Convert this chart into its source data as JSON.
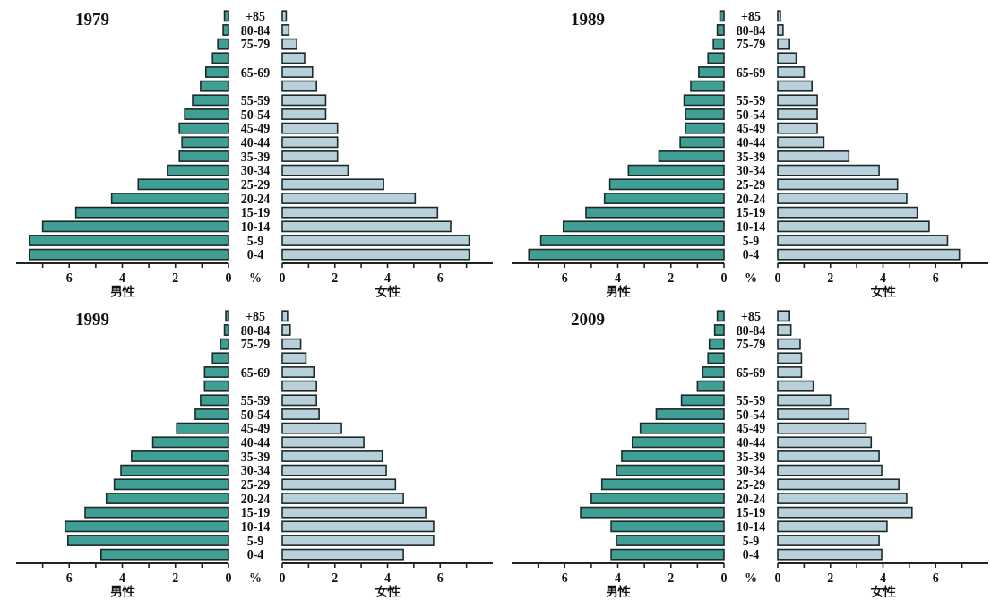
{
  "chart_data": [
    {
      "type": "bar",
      "orientation": "horizontal",
      "title": "1979",
      "xlabel": "男性",
      "annotations": [
        "%"
      ],
      "tick_labels": "x",
      "categories": [
        "+85",
        "80-84",
        "75-79",
        null,
        "65-69",
        null,
        "55-59",
        "50-54",
        "45-49",
        "40-44",
        "35-39",
        "30-34",
        "25-29",
        "20-24",
        "15-19",
        "10-14",
        "5-9",
        "0-4"
      ],
      "xlim": [
        8,
        0
      ],
      "xticks": [
        {
          "value": 7,
          "label": null
        },
        6,
        {
          "value": 5,
          "label": null
        },
        4,
        {
          "value": 3,
          "label": null
        },
        2,
        {
          "value": 1,
          "label": null
        },
        0
      ],
      "series": [
        {
          "color": "#3f9f95",
          "values": [
            0.15,
            0.2,
            0.4,
            0.6,
            0.85,
            1.05,
            1.35,
            1.65,
            1.85,
            1.75,
            1.85,
            2.3,
            3.4,
            4.4,
            5.75,
            7.0,
            7.5,
            7.5
          ]
        }
      ]
    },
    {
      "type": "bar",
      "orientation": "horizontal",
      "xlabel": "女性",
      "categories": [
        "+85",
        "80-84",
        "75-79",
        null,
        "65-69",
        null,
        "55-59",
        "50-54",
        "45-49",
        "40-44",
        "35-39",
        "30-34",
        "25-29",
        "20-24",
        "15-19",
        "10-14",
        "5-9",
        "0-4"
      ],
      "xlim": [
        0,
        8
      ],
      "xticks": [
        0,
        {
          "value": 1,
          "label": null
        },
        2,
        {
          "value": 3,
          "label": null
        },
        4,
        {
          "value": 5,
          "label": null
        },
        6,
        {
          "value": 7,
          "label": null
        }
      ],
      "series": [
        {
          "color": "#b8d0dc",
          "values": [
            0.15,
            0.25,
            0.55,
            0.85,
            1.15,
            1.3,
            1.65,
            1.65,
            2.1,
            2.1,
            2.1,
            2.5,
            3.85,
            5.05,
            5.9,
            6.4,
            7.1,
            7.1
          ]
        }
      ]
    },
    {
      "type": "bar",
      "orientation": "horizontal",
      "title": "1989",
      "xlabel": "男性",
      "annotations": [
        "%"
      ],
      "tick_labels": "x",
      "categories": [
        "+85",
        "80-84",
        "75-79",
        null,
        "65-69",
        null,
        "55-59",
        "50-54",
        "45-49",
        "40-44",
        "35-39",
        "30-34",
        "25-29",
        "20-24",
        "15-19",
        "10-14",
        "5-9",
        "0-4"
      ],
      "xlim": [
        8,
        0
      ],
      "xticks": [
        {
          "value": 7,
          "label": null
        },
        6,
        {
          "value": 5,
          "label": null
        },
        4,
        {
          "value": 3,
          "label": null
        },
        2,
        {
          "value": 1,
          "label": null
        },
        0
      ],
      "series": [
        {
          "color": "#3f9f95",
          "values": [
            0.15,
            0.25,
            0.4,
            0.6,
            0.95,
            1.25,
            1.5,
            1.45,
            1.45,
            1.65,
            2.45,
            3.6,
            4.3,
            4.5,
            5.2,
            6.05,
            6.9,
            7.35
          ]
        }
      ]
    },
    {
      "type": "bar",
      "orientation": "horizontal",
      "xlabel": "女性",
      "categories": [
        "+85",
        "80-84",
        "75-79",
        null,
        "65-69",
        null,
        "55-59",
        "50-54",
        "45-49",
        "40-44",
        "35-39",
        "30-34",
        "25-29",
        "20-24",
        "15-19",
        "10-14",
        "5-9",
        "0-4"
      ],
      "xlim": [
        0,
        8
      ],
      "xticks": [
        0,
        {
          "value": 1,
          "label": null
        },
        2,
        {
          "value": 3,
          "label": null
        },
        4,
        {
          "value": 5,
          "label": null
        },
        6,
        {
          "value": 7,
          "label": null
        }
      ],
      "series": [
        {
          "color": "#b8d0dc",
          "values": [
            0.1,
            0.2,
            0.45,
            0.7,
            1.0,
            1.3,
            1.5,
            1.5,
            1.5,
            1.75,
            2.7,
            3.85,
            4.55,
            4.9,
            5.3,
            5.75,
            6.45,
            6.9
          ]
        }
      ]
    },
    {
      "type": "bar",
      "orientation": "horizontal",
      "title": "1999",
      "xlabel": "男性",
      "annotations": [
        "%"
      ],
      "tick_labels": "x",
      "categories": [
        "+85",
        "80-84",
        "75-79",
        null,
        "65-69",
        null,
        "55-59",
        "50-54",
        "45-49",
        "40-44",
        "35-39",
        "30-34",
        "25-29",
        "20-24",
        "15-19",
        "10-14",
        "5-9",
        "0-4"
      ],
      "xlim": [
        8,
        0
      ],
      "xticks": [
        {
          "value": 7,
          "label": null
        },
        6,
        {
          "value": 5,
          "label": null
        },
        4,
        {
          "value": 3,
          "label": null
        },
        2,
        {
          "value": 1,
          "label": null
        },
        0
      ],
      "series": [
        {
          "color": "#3f9f95",
          "values": [
            0.1,
            0.15,
            0.3,
            0.6,
            0.9,
            0.9,
            1.05,
            1.25,
            1.95,
            2.85,
            3.65,
            4.05,
            4.3,
            4.6,
            5.4,
            6.15,
            6.05,
            4.8
          ]
        }
      ]
    },
    {
      "type": "bar",
      "orientation": "horizontal",
      "xlabel": "女性",
      "categories": [
        "+85",
        "80-84",
        "75-79",
        null,
        "65-69",
        null,
        "55-59",
        "50-54",
        "45-49",
        "40-44",
        "35-39",
        "30-34",
        "25-29",
        "20-24",
        "15-19",
        "10-14",
        "5-9",
        "0-4"
      ],
      "xlim": [
        0,
        8
      ],
      "xticks": [
        0,
        {
          "value": 1,
          "label": null
        },
        2,
        {
          "value": 3,
          "label": null
        },
        4,
        {
          "value": 5,
          "label": null
        },
        6,
        {
          "value": 7,
          "label": null
        }
      ],
      "series": [
        {
          "color": "#b8d0dc",
          "values": [
            0.2,
            0.3,
            0.7,
            0.9,
            1.2,
            1.3,
            1.3,
            1.4,
            2.25,
            3.1,
            3.8,
            3.95,
            4.3,
            4.6,
            5.45,
            5.75,
            5.75,
            4.6
          ]
        }
      ]
    },
    {
      "type": "bar",
      "orientation": "horizontal",
      "title": "2009",
      "xlabel": "男性",
      "annotations": [
        "%"
      ],
      "tick_labels": "x",
      "categories": [
        "+85",
        "80-84",
        "75-79",
        null,
        "65-69",
        null,
        "55-59",
        "50-54",
        "45-49",
        "40-44",
        "35-39",
        "30-34",
        "25-29",
        "20-24",
        "15-19",
        "10-14",
        "5-9",
        "0-4"
      ],
      "xlim": [
        8,
        0
      ],
      "xticks": [
        {
          "value": 7,
          "label": null
        },
        6,
        {
          "value": 5,
          "label": null
        },
        4,
        {
          "value": 3,
          "label": null
        },
        2,
        {
          "value": 1,
          "label": null
        },
        0
      ],
      "series": [
        {
          "color": "#3f9f95",
          "values": [
            0.25,
            0.35,
            0.55,
            0.6,
            0.8,
            1.0,
            1.6,
            2.55,
            3.15,
            3.45,
            3.85,
            4.05,
            4.6,
            5.0,
            5.4,
            4.25,
            4.05,
            4.25
          ]
        }
      ]
    },
    {
      "type": "bar",
      "orientation": "horizontal",
      "xlabel": "女性",
      "categories": [
        "+85",
        "80-84",
        "75-79",
        null,
        "65-69",
        null,
        "55-59",
        "50-54",
        "45-49",
        "40-44",
        "35-39",
        "30-34",
        "25-29",
        "20-24",
        "15-19",
        "10-14",
        "5-9",
        "0-4"
      ],
      "xlim": [
        0,
        8
      ],
      "xticks": [
        0,
        {
          "value": 1,
          "label": null
        },
        2,
        {
          "value": 3,
          "label": null
        },
        4,
        {
          "value": 5,
          "label": null
        },
        6,
        {
          "value": 7,
          "label": null
        }
      ],
      "series": [
        {
          "color": "#b8d0dc",
          "values": [
            0.45,
            0.5,
            0.85,
            0.9,
            0.9,
            1.35,
            2.0,
            2.7,
            3.35,
            3.55,
            3.85,
            3.95,
            4.6,
            4.9,
            5.1,
            4.15,
            3.85,
            3.95
          ]
        }
      ]
    }
  ]
}
